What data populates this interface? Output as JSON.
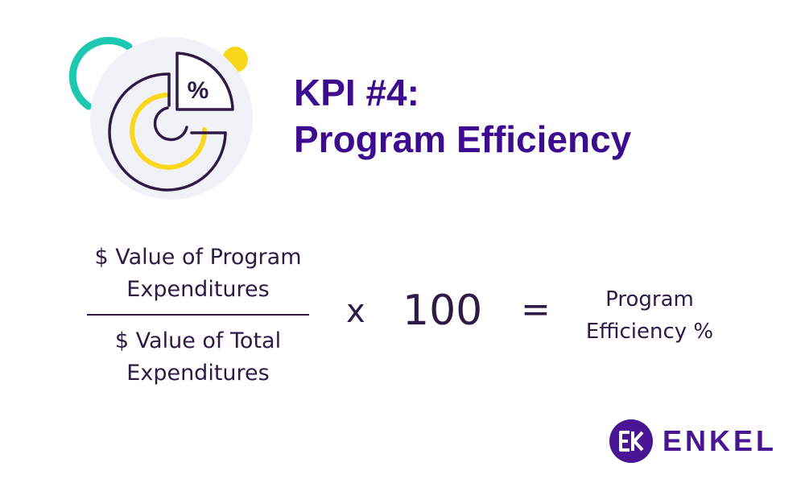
{
  "header": {
    "title_line1": "KPI #4:",
    "title_line2": "Program Efficiency"
  },
  "icon": {
    "name": "pie-chart-percent-icon",
    "glyph": "%",
    "colors": {
      "background": "#f1f2f8",
      "teal": "#1ec8b0",
      "yellow": "#f8d71c",
      "outline": "#2d1a45"
    }
  },
  "formula": {
    "numerator_line1": "$ Value of Program",
    "numerator_line2": "Expenditures",
    "denominator_line1": "$ Value of Total",
    "denominator_line2": "Expenditures",
    "multiply_sign": "x",
    "multiplier": "100",
    "equals_sign": "=",
    "result_line1": "Program",
    "result_line2": "Efficiency %"
  },
  "brand": {
    "name": "ENKEL",
    "color": "#4a1593"
  },
  "colors": {
    "title": "#3d0b8f",
    "text": "#2d1a45"
  }
}
